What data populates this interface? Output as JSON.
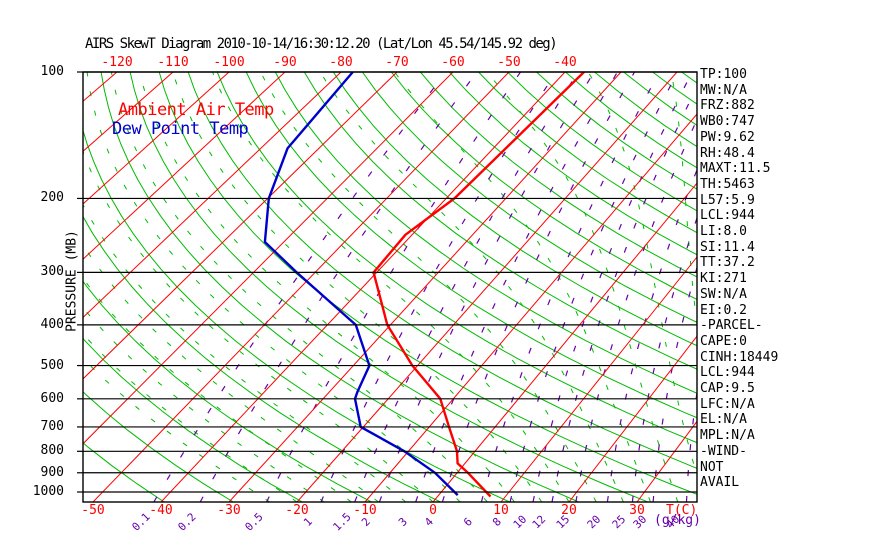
{
  "title": "AIRS SkewT Diagram 2010-10-14/16:30:12.20 (Lat/Lon 45.54/145.92 deg)",
  "legend": {
    "ambient": "Ambient Air Temp",
    "dew": "Dew Point Temp"
  },
  "axes": {
    "pressure_label": "PRESSURE (MB)",
    "pressure_ticks": [
      100,
      200,
      300,
      400,
      500,
      600,
      700,
      800,
      900,
      1000
    ],
    "temp_unit_label": "T(C)",
    "mixing_unit_label": "(g/kg)",
    "top_isotherm_labels": [
      -120,
      -110,
      -100,
      -90,
      -80,
      -70,
      -60,
      -50,
      -40
    ],
    "bottom_isotherm_labels": [
      -50,
      -40,
      -30,
      -20,
      -10,
      0,
      10,
      20,
      30
    ],
    "mixing_ratio_labels": [
      0.1,
      0.2,
      0.5,
      1,
      1.5,
      2,
      3,
      4,
      6,
      8,
      10,
      12,
      15,
      20,
      25,
      30,
      40
    ]
  },
  "stats_panel": {
    "lines": [
      "TP:100",
      "MW:N/A",
      "FRZ:882",
      "WB0:747",
      "PW:9.62",
      "RH:48.4",
      "MAXT:11.5",
      "TH:5463",
      "L57:5.9",
      "LCL:944",
      "LI:8.0",
      "SI:11.4",
      "TT:37.2",
      "KI:271",
      "SW:N/A",
      "EI:0.2",
      "-PARCEL-",
      "CAPE:0",
      "CINH:18449",
      "LCL:944",
      "CAP:9.5",
      "LFC:N/A",
      "EL:N/A",
      "MPL:N/A",
      "-WIND-",
      "NOT",
      "AVAIL"
    ]
  },
  "colors": {
    "isotherm_red": "#ff0000",
    "adiabat_green": "#00bb00",
    "mixing_purple": "#6600aa",
    "dewpoint_blue": "#0000cc",
    "axis_black": "#000000"
  },
  "chart_data": {
    "type": "line",
    "title": "AIRS SkewT Diagram 2010-10-14/16:30:12.20 (Lat/Lon 45.54/145.92 deg)",
    "x_axis": {
      "label": "T(C)",
      "units": "deg C",
      "bottom_ticks": [
        -50,
        -40,
        -30,
        -20,
        -10,
        0,
        10,
        20,
        30
      ],
      "top_ticks": [
        -120,
        -110,
        -100,
        -90,
        -80,
        -70,
        -60,
        -50,
        -40
      ]
    },
    "y_axis": {
      "label": "PRESSURE (MB)",
      "scale": "log",
      "range": [
        100,
        1056
      ],
      "ticks": [
        100,
        200,
        300,
        400,
        500,
        600,
        700,
        800,
        900,
        1000
      ]
    },
    "mixing_ratio_lines_g_per_kg": [
      0.1,
      0.2,
      0.5,
      1,
      1.5,
      2,
      3,
      4,
      6,
      8,
      10,
      12,
      15,
      20,
      25,
      30,
      40
    ],
    "legend_position": "top-left",
    "grid": "skew-t lattice: red isotherms, green dry adiabats, green dashed moist adiabats, purple dashed mixing ratio",
    "series": [
      {
        "name": "Ambient Air Temp",
        "color": "#ff0000",
        "points": [
          {
            "p": 100,
            "t": -36.6
          },
          {
            "p": 200,
            "t": -38.6
          },
          {
            "p": 244,
            "t": -41.1
          },
          {
            "p": 300,
            "t": -40.5
          },
          {
            "p": 400,
            "t": -30.5
          },
          {
            "p": 500,
            "t": -20.8
          },
          {
            "p": 600,
            "t": -12.0
          },
          {
            "p": 700,
            "t": -7.0
          },
          {
            "p": 800,
            "t": -2.7
          },
          {
            "p": 855,
            "t": -1.1
          },
          {
            "p": 900,
            "t": 1.6
          },
          {
            "p": 1025,
            "t": 7.8
          }
        ]
      },
      {
        "name": "Dew Point Temp",
        "color": "#0000cc",
        "points": [
          {
            "p": 100,
            "t": -77.9
          },
          {
            "p": 152,
            "t": -75.4
          },
          {
            "p": 200,
            "t": -69.8
          },
          {
            "p": 254,
            "t": -63.1
          },
          {
            "p": 300,
            "t": -53.0
          },
          {
            "p": 400,
            "t": -35.5
          },
          {
            "p": 500,
            "t": -27.5
          },
          {
            "p": 577,
            "t": -25.7
          },
          {
            "p": 600,
            "t": -25.1
          },
          {
            "p": 700,
            "t": -20.4
          },
          {
            "p": 800,
            "t": -10.6
          },
          {
            "p": 900,
            "t": -3.3
          },
          {
            "p": 1017,
            "t": 2.8
          }
        ]
      }
    ]
  }
}
